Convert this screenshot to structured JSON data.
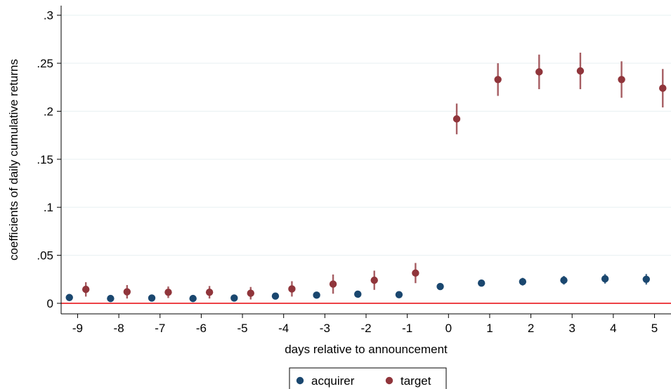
{
  "chart_data": {
    "type": "scatter",
    "xlabel": "days relative to announcement",
    "ylabel": "coefficients of daily cumulative returns",
    "xlim": [
      -9.4,
      5.4
    ],
    "ylim": [
      -0.011,
      0.31
    ],
    "x_ticks": [
      -9,
      -8,
      -7,
      -6,
      -5,
      -4,
      -3,
      -2,
      -1,
      0,
      1,
      2,
      3,
      4,
      5
    ],
    "y_ticks": [
      0,
      0.05,
      0.1,
      0.15,
      0.2,
      0.25,
      0.3
    ],
    "x_tick_labels": [
      "-9",
      "-8",
      "-7",
      "-6",
      "-5",
      "-4",
      "-3",
      "-2",
      "-1",
      "0",
      "1",
      "2",
      "3",
      "4",
      "5"
    ],
    "y_tick_labels": [
      "0",
      ".05",
      ".1",
      ".15",
      ".2",
      ".25",
      ".3"
    ],
    "grid": "horizontal",
    "reference_line": {
      "y": 0,
      "color": "#e8161b"
    },
    "legend": {
      "placement": "bottom-center",
      "entries": [
        "acquirer",
        "target"
      ]
    },
    "series": [
      {
        "name": "acquirer",
        "color": "#1a476f",
        "points": [
          {
            "x": -9.2,
            "y": 0.006,
            "lo": 0.004,
            "hi": 0.008
          },
          {
            "x": -8.2,
            "y": 0.005,
            "lo": 0.003,
            "hi": 0.007
          },
          {
            "x": -7.2,
            "y": 0.0055,
            "lo": 0.0035,
            "hi": 0.0075
          },
          {
            "x": -6.2,
            "y": 0.005,
            "lo": 0.003,
            "hi": 0.007
          },
          {
            "x": -5.2,
            "y": 0.0055,
            "lo": 0.0035,
            "hi": 0.0075
          },
          {
            "x": -4.2,
            "y": 0.0075,
            "lo": 0.0055,
            "hi": 0.0095
          },
          {
            "x": -3.2,
            "y": 0.0085,
            "lo": 0.006,
            "hi": 0.011
          },
          {
            "x": -2.2,
            "y": 0.0095,
            "lo": 0.007,
            "hi": 0.012
          },
          {
            "x": -1.2,
            "y": 0.009,
            "lo": 0.0065,
            "hi": 0.0115
          },
          {
            "x": -0.2,
            "y": 0.0175,
            "lo": 0.0145,
            "hi": 0.0205
          },
          {
            "x": 0.8,
            "y": 0.021,
            "lo": 0.0175,
            "hi": 0.0245
          },
          {
            "x": 1.8,
            "y": 0.0225,
            "lo": 0.0185,
            "hi": 0.0265
          },
          {
            "x": 2.8,
            "y": 0.024,
            "lo": 0.0195,
            "hi": 0.0285
          },
          {
            "x": 3.8,
            "y": 0.0255,
            "lo": 0.0205,
            "hi": 0.0305
          },
          {
            "x": 4.8,
            "y": 0.025,
            "lo": 0.0195,
            "hi": 0.0305
          }
        ]
      },
      {
        "name": "target",
        "color": "#90353b",
        "points": [
          {
            "x": -8.8,
            "y": 0.0145,
            "lo": 0.007,
            "hi": 0.022
          },
          {
            "x": -7.8,
            "y": 0.012,
            "lo": 0.005,
            "hi": 0.019
          },
          {
            "x": -6.8,
            "y": 0.0115,
            "lo": 0.0055,
            "hi": 0.0175
          },
          {
            "x": -5.8,
            "y": 0.0115,
            "lo": 0.005,
            "hi": 0.018
          },
          {
            "x": -4.8,
            "y": 0.0105,
            "lo": 0.004,
            "hi": 0.017
          },
          {
            "x": -3.8,
            "y": 0.015,
            "lo": 0.007,
            "hi": 0.023
          },
          {
            "x": -2.8,
            "y": 0.02,
            "lo": 0.01,
            "hi": 0.03
          },
          {
            "x": -1.8,
            "y": 0.024,
            "lo": 0.014,
            "hi": 0.034
          },
          {
            "x": -0.8,
            "y": 0.0315,
            "lo": 0.021,
            "hi": 0.042
          },
          {
            "x": 0.2,
            "y": 0.192,
            "lo": 0.176,
            "hi": 0.208
          },
          {
            "x": 1.2,
            "y": 0.233,
            "lo": 0.216,
            "hi": 0.25
          },
          {
            "x": 2.2,
            "y": 0.241,
            "lo": 0.223,
            "hi": 0.259
          },
          {
            "x": 3.2,
            "y": 0.242,
            "lo": 0.223,
            "hi": 0.261
          },
          {
            "x": 4.2,
            "y": 0.233,
            "lo": 0.214,
            "hi": 0.252
          },
          {
            "x": 5.2,
            "y": 0.224,
            "lo": 0.204,
            "hi": 0.244
          }
        ]
      }
    ]
  }
}
